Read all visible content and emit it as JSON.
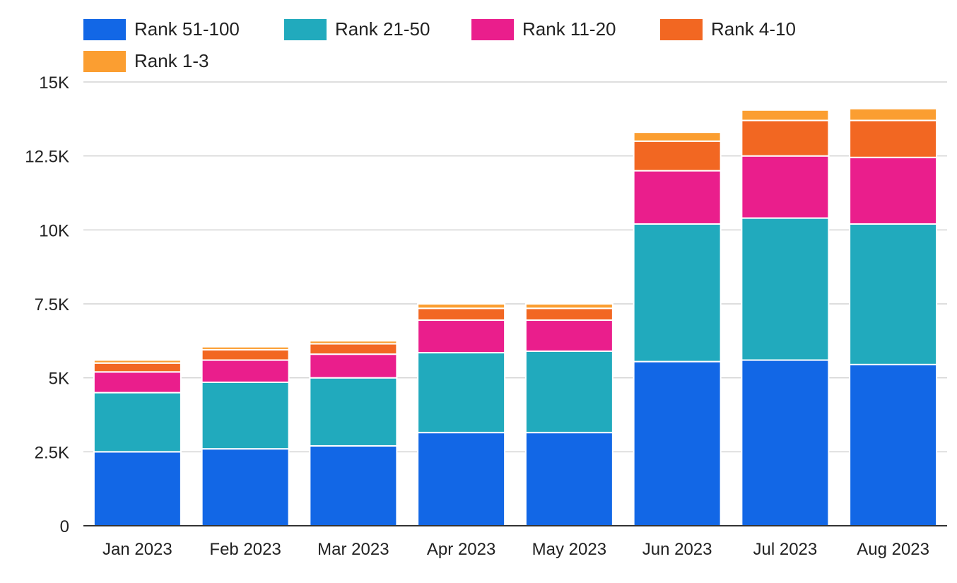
{
  "chart_data": {
    "type": "bar",
    "stacked": true,
    "title": "",
    "xlabel": "",
    "ylabel": "",
    "categories": [
      "Jan 2023",
      "Feb 2023",
      "Mar 2023",
      "Apr 2023",
      "May 2023",
      "Jun 2023",
      "Jul 2023",
      "Aug 2023"
    ],
    "series": [
      {
        "name": "Rank 51-100",
        "color": "#1267e6",
        "values": [
          2500,
          2600,
          2700,
          3150,
          3150,
          5550,
          5600,
          5450
        ]
      },
      {
        "name": "Rank 21-50",
        "color": "#21aabd",
        "values": [
          2000,
          2250,
          2300,
          2700,
          2750,
          4650,
          4800,
          4750
        ]
      },
      {
        "name": "Rank 11-20",
        "color": "#ea1e8c",
        "values": [
          700,
          750,
          800,
          1100,
          1050,
          1800,
          2100,
          2250
        ]
      },
      {
        "name": "Rank 4-10",
        "color": "#f26722",
        "values": [
          300,
          350,
          350,
          400,
          400,
          1000,
          1200,
          1250
        ]
      },
      {
        "name": "Rank 1-3",
        "color": "#fb9e31",
        "values": [
          100,
          100,
          100,
          150,
          150,
          300,
          350,
          400
        ]
      }
    ],
    "ylim": [
      0,
      15000
    ],
    "yticks": [
      0,
      2500,
      5000,
      7500,
      10000,
      12500,
      15000
    ],
    "ytick_labels": [
      "0",
      "2.5K",
      "5K",
      "7.5K",
      "10K",
      "12.5K",
      "15K"
    ],
    "grid": true,
    "legend_position": "top-left"
  }
}
